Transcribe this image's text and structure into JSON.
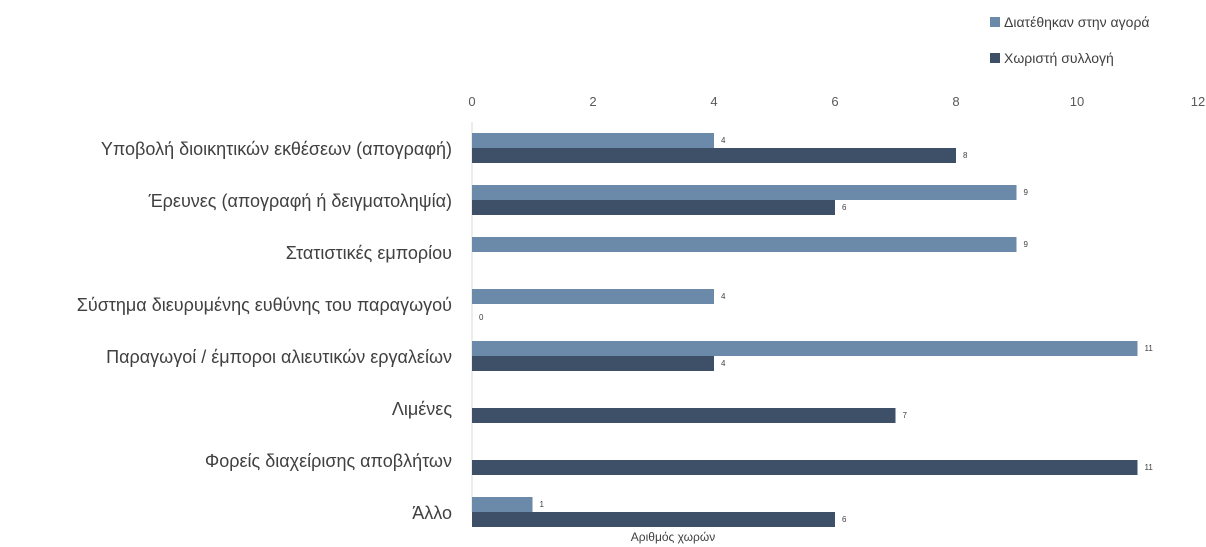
{
  "chart_data": {
    "type": "bar",
    "orientation": "horizontal",
    "categories": [
      "Υποβολή διοικητικών εκθέσεων (απογραφή)",
      "Έρευνες (απογραφή ή δειγματοληψία)",
      "Στατιστικές εμπορίου",
      "Σύστημα διευρυμένης ευθύνης του παραγωγού",
      "Παραγωγοί / έμποροι αλιευτικών εργαλείων",
      "Λιμένες",
      "Φορείς διαχείρισης αποβλήτων",
      "Άλλο"
    ],
    "series": [
      {
        "name": "Διατέθηκαν στην αγορά",
        "color": "#6b89a8",
        "values": [
          4,
          9,
          9,
          4,
          11,
          null,
          null,
          1
        ],
        "labels": [
          "4",
          "9",
          "9",
          "4",
          "11",
          null,
          null,
          "1"
        ]
      },
      {
        "name": "Χωριστή συλλογή",
        "color": "#3e5068",
        "values": [
          8,
          6,
          null,
          0,
          4,
          7,
          11,
          6
        ],
        "labels": [
          "8",
          "6",
          null,
          "0",
          "4",
          "7",
          "11",
          "6"
        ]
      }
    ],
    "xlim": [
      0,
      12
    ],
    "xticks": [
      "0",
      "2",
      "4",
      "6",
      "8",
      "10",
      "12"
    ],
    "xlabel": "Αριθμός χωρών",
    "ylabel": "",
    "grid": false,
    "legend_position": "top-right",
    "axis_position": "top"
  }
}
